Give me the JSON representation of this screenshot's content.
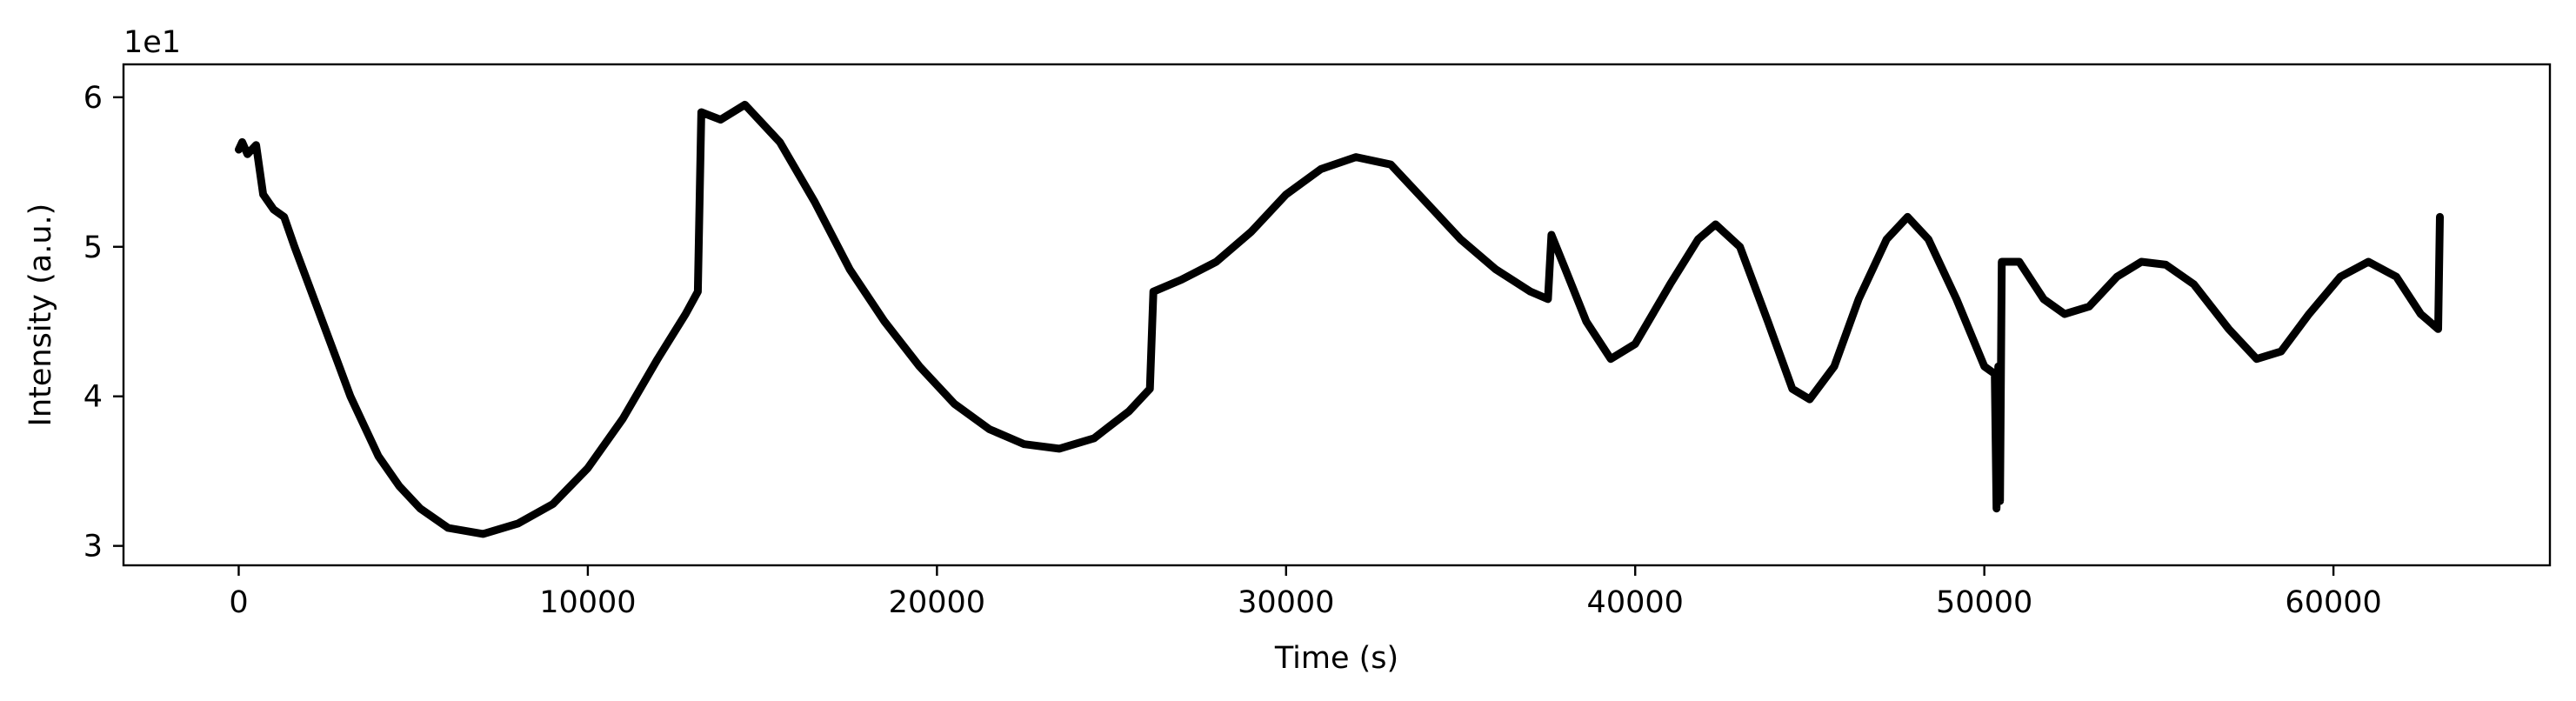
{
  "chart_data": {
    "type": "line",
    "title": "",
    "xlabel": "Time (s)",
    "ylabel": "Intensity (a.u.)",
    "y_multiplier_label": "1e1",
    "xlim": [
      -3300,
      66200
    ],
    "ylim": [
      2.87,
      6.22
    ],
    "xticks": [
      0,
      10000,
      20000,
      30000,
      40000,
      50000,
      60000
    ],
    "xtick_labels": [
      "0",
      "10000",
      "20000",
      "30000",
      "40000",
      "50000",
      "60000"
    ],
    "yticks": [
      3,
      4,
      5,
      6
    ],
    "ytick_labels": [
      "3",
      "4",
      "5",
      "6"
    ],
    "grid": false,
    "legend": false,
    "series": [
      {
        "name": "Intensity",
        "color": "#000000",
        "points": [
          [
            0,
            5.65
          ],
          [
            100,
            5.7
          ],
          [
            250,
            5.62
          ],
          [
            500,
            5.68
          ],
          [
            700,
            5.35
          ],
          [
            1000,
            5.25
          ],
          [
            1300,
            5.2
          ],
          [
            1600,
            5.0
          ],
          [
            2000,
            4.75
          ],
          [
            2400,
            4.5
          ],
          [
            2800,
            4.25
          ],
          [
            3200,
            4.0
          ],
          [
            3600,
            3.8
          ],
          [
            4000,
            3.6
          ],
          [
            4600,
            3.4
          ],
          [
            5200,
            3.25
          ],
          [
            6000,
            3.12
          ],
          [
            7000,
            3.08
          ],
          [
            8000,
            3.15
          ],
          [
            9000,
            3.28
          ],
          [
            10000,
            3.52
          ],
          [
            11000,
            3.85
          ],
          [
            12000,
            4.25
          ],
          [
            12800,
            4.55
          ],
          [
            13150,
            4.7
          ],
          [
            13250,
            5.9
          ],
          [
            13800,
            5.85
          ],
          [
            14500,
            5.95
          ],
          [
            15500,
            5.7
          ],
          [
            16500,
            5.3
          ],
          [
            17500,
            4.85
          ],
          [
            18500,
            4.5
          ],
          [
            19500,
            4.2
          ],
          [
            20500,
            3.95
          ],
          [
            21500,
            3.78
          ],
          [
            22500,
            3.68
          ],
          [
            23500,
            3.65
          ],
          [
            24500,
            3.72
          ],
          [
            25500,
            3.9
          ],
          [
            26100,
            4.05
          ],
          [
            26200,
            4.7
          ],
          [
            27000,
            4.78
          ],
          [
            28000,
            4.9
          ],
          [
            29000,
            5.1
          ],
          [
            30000,
            5.35
          ],
          [
            31000,
            5.52
          ],
          [
            32000,
            5.6
          ],
          [
            33000,
            5.55
          ],
          [
            34000,
            5.3
          ],
          [
            35000,
            5.05
          ],
          [
            36000,
            4.85
          ],
          [
            37000,
            4.7
          ],
          [
            37500,
            4.65
          ],
          [
            37600,
            5.08
          ],
          [
            38000,
            4.85
          ],
          [
            38600,
            4.5
          ],
          [
            39300,
            4.25
          ],
          [
            40000,
            4.35
          ],
          [
            41000,
            4.75
          ],
          [
            41800,
            5.05
          ],
          [
            42300,
            5.15
          ],
          [
            43000,
            5.0
          ],
          [
            43800,
            4.5
          ],
          [
            44500,
            4.05
          ],
          [
            45000,
            3.98
          ],
          [
            45700,
            4.2
          ],
          [
            46400,
            4.65
          ],
          [
            47200,
            5.05
          ],
          [
            47800,
            5.2
          ],
          [
            48400,
            5.05
          ],
          [
            49200,
            4.65
          ],
          [
            50000,
            4.2
          ],
          [
            50300,
            4.15
          ],
          [
            50350,
            3.25
          ],
          [
            50400,
            4.2
          ],
          [
            50450,
            3.3
          ],
          [
            50500,
            4.9
          ],
          [
            51000,
            4.9
          ],
          [
            51700,
            4.65
          ],
          [
            52300,
            4.55
          ],
          [
            53000,
            4.6
          ],
          [
            53800,
            4.8
          ],
          [
            54500,
            4.9
          ],
          [
            55200,
            4.88
          ],
          [
            56000,
            4.75
          ],
          [
            57000,
            4.45
          ],
          [
            57800,
            4.25
          ],
          [
            58500,
            4.3
          ],
          [
            59300,
            4.55
          ],
          [
            60200,
            4.8
          ],
          [
            61000,
            4.9
          ],
          [
            61800,
            4.8
          ],
          [
            62500,
            4.55
          ],
          [
            63000,
            4.45
          ],
          [
            63050,
            5.2
          ]
        ]
      }
    ]
  }
}
